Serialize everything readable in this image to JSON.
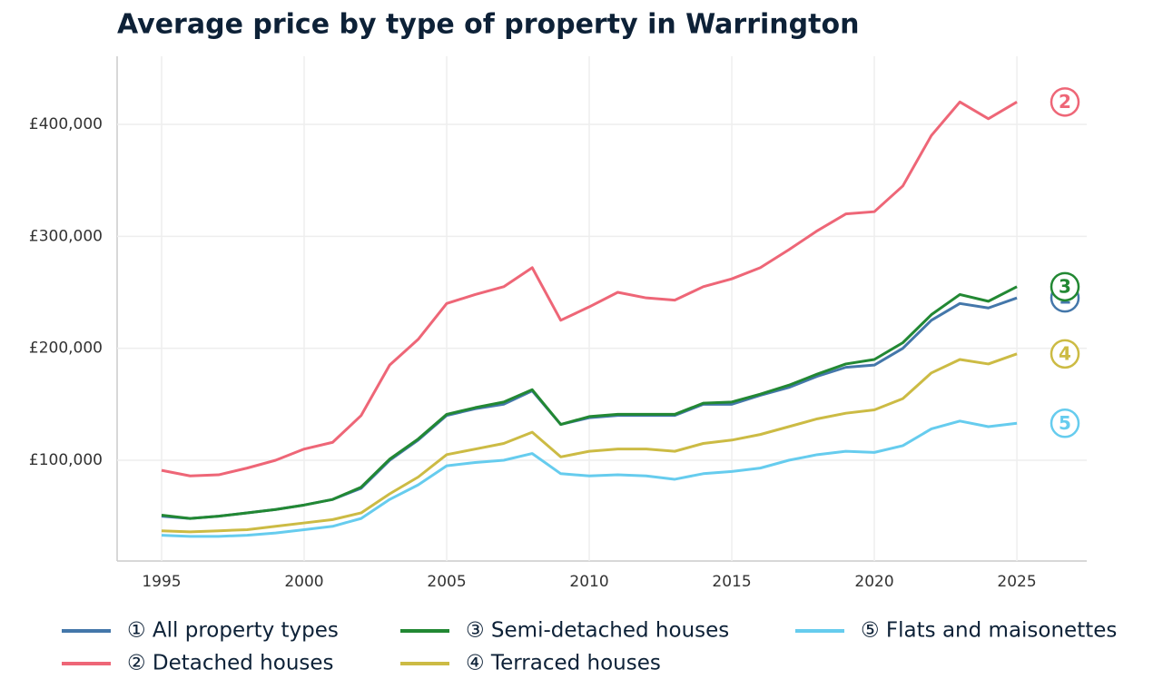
{
  "chart_data": {
    "type": "line",
    "title": "Average price by type of property in Warrington",
    "x": [
      1995,
      1996,
      1997,
      1998,
      1999,
      2000,
      2001,
      2002,
      2003,
      2004,
      2005,
      2006,
      2007,
      2008,
      2009,
      2010,
      2011,
      2012,
      2013,
      2014,
      2015,
      2016,
      2017,
      2018,
      2019,
      2020,
      2021,
      2022,
      2023,
      2024,
      2025
    ],
    "series": [
      {
        "name": "① All property types",
        "end_label": "1",
        "color": "#4477aa",
        "values": [
          50000,
          48000,
          50000,
          53000,
          56000,
          60000,
          65000,
          75000,
          100000,
          118000,
          140000,
          146000,
          150000,
          162000,
          132000,
          138000,
          140000,
          140000,
          140000,
          150000,
          150000,
          158000,
          165000,
          175000,
          183000,
          185000,
          200000,
          225000,
          240000,
          236000,
          245000
        ]
      },
      {
        "name": "② Detached houses",
        "end_label": "2",
        "color": "#ee6677",
        "values": [
          91000,
          86000,
          87000,
          93000,
          100000,
          110000,
          116000,
          140000,
          185000,
          208000,
          240000,
          248000,
          255000,
          272000,
          225000,
          237000,
          250000,
          245000,
          243000,
          255000,
          262000,
          272000,
          288000,
          305000,
          320000,
          322000,
          345000,
          390000,
          420000,
          405000,
          420000
        ]
      },
      {
        "name": "③ Semi-detached houses",
        "end_label": "3",
        "color": "#228833",
        "values": [
          51000,
          48000,
          50000,
          53000,
          56000,
          60000,
          65000,
          76000,
          101000,
          119000,
          141000,
          147000,
          152000,
          163000,
          132000,
          139000,
          141000,
          141000,
          141000,
          151000,
          152000,
          159000,
          167000,
          177000,
          186000,
          190000,
          205000,
          230000,
          248000,
          242000,
          255000
        ]
      },
      {
        "name": "④ Terraced houses",
        "end_label": "4",
        "color": "#ccbb44",
        "values": [
          37000,
          36000,
          37000,
          38000,
          41000,
          44000,
          47000,
          53000,
          70000,
          85000,
          105000,
          110000,
          115000,
          125000,
          103000,
          108000,
          110000,
          110000,
          108000,
          115000,
          118000,
          123000,
          130000,
          137000,
          142000,
          145000,
          155000,
          178000,
          190000,
          186000,
          195000
        ]
      },
      {
        "name": "⑤ Flats and maisonettes",
        "end_label": "5",
        "color": "#66ccee",
        "values": [
          33000,
          32000,
          32000,
          33000,
          35000,
          38000,
          41000,
          48000,
          65000,
          78000,
          95000,
          98000,
          100000,
          106000,
          88000,
          86000,
          87000,
          86000,
          83000,
          88000,
          90000,
          93000,
          100000,
          105000,
          108000,
          107000,
          113000,
          128000,
          135000,
          130000,
          133000
        ]
      }
    ],
    "xlim": [
      1993.44,
      2027.45
    ],
    "xticks": [
      1995,
      2000,
      2005,
      2010,
      2015,
      2020,
      2025
    ],
    "ylim": [
      10000,
      460800
    ],
    "yticks": [
      {
        "value": 100000,
        "label": "£100,000"
      },
      {
        "value": 200000,
        "label": "£200,000"
      },
      {
        "value": 300000,
        "label": "£300,000"
      },
      {
        "value": 400000,
        "label": "£400,000"
      }
    ],
    "grid": true
  }
}
